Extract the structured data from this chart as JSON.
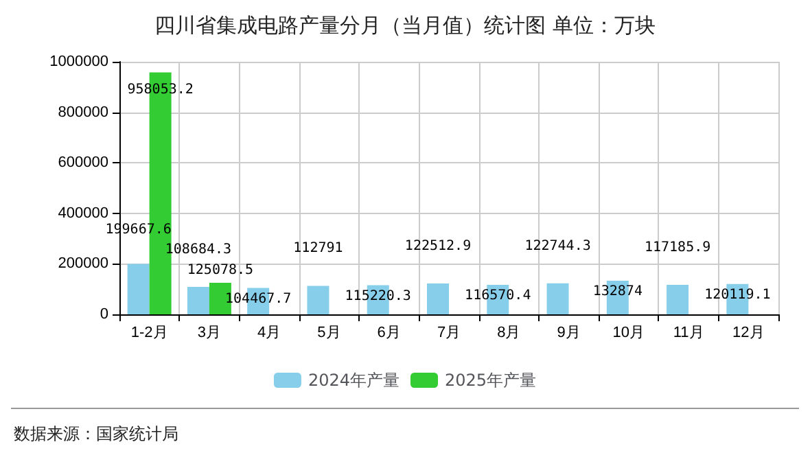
{
  "chart_data": {
    "type": "bar",
    "title": "四川省集成电路产量分月（当月值）统计图 单位：万块",
    "categories": [
      "1-2月",
      "3月",
      "4月",
      "5月",
      "6月",
      "7月",
      "8月",
      "9月",
      "10月",
      "11月",
      "12月"
    ],
    "series": [
      {
        "name": "2024年产量",
        "color": "#87ceeb",
        "values": [
          199667.6,
          108684.3,
          104467.7,
          112791,
          115220.3,
          122512.9,
          116570.4,
          122744.3,
          132874,
          117185.9,
          120119.1
        ]
      },
      {
        "name": "2025年产量",
        "color": "#33cc33",
        "values": [
          958053.2,
          125078.5,
          null,
          null,
          null,
          null,
          null,
          null,
          null,
          null,
          null
        ]
      }
    ],
    "ylim": [
      0,
      1000000
    ],
    "yticks": [
      0,
      200000,
      400000,
      600000,
      800000,
      1000000
    ],
    "grid": true,
    "legend": "bottom",
    "data_labels": true,
    "annotations": [
      "数据来源：国家统计局"
    ]
  }
}
